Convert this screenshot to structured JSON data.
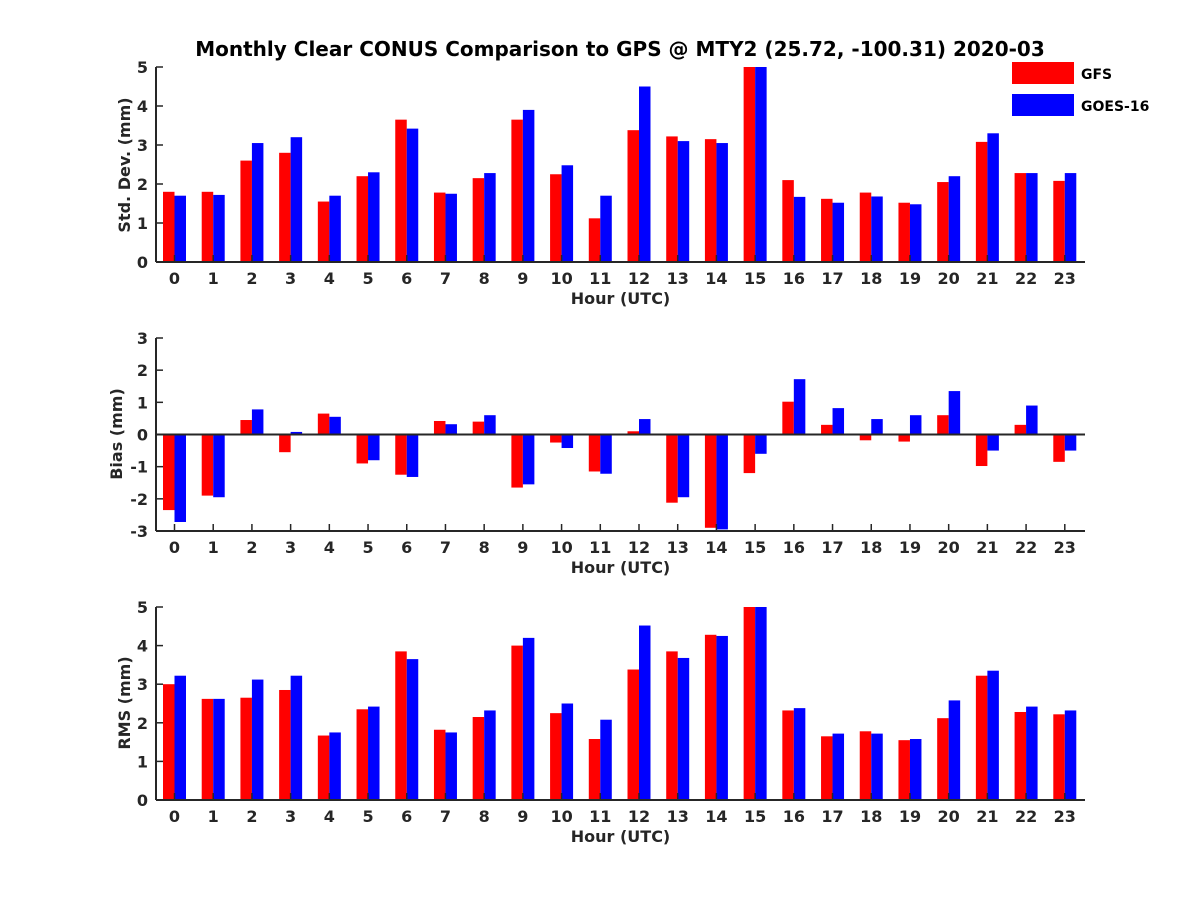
{
  "title": "Monthly Clear CONUS Comparison to GPS @ MTY2 (25.72, -100.31) 2020-03",
  "legend": {
    "placement": "top-right",
    "entries": [
      "GFS",
      "GOES-16"
    ]
  },
  "colors": {
    "GFS": "#ff0000",
    "GOES-16": "#0000ff",
    "axis": "#262626"
  },
  "chart_data": [
    {
      "type": "bar",
      "xlabel": "Hour (UTC)",
      "ylabel": "Std. Dev. (mm)",
      "ylim": [
        0,
        5
      ],
      "yticks": [
        0,
        1,
        2,
        3,
        4,
        5
      ],
      "categories": [
        "0",
        "1",
        "2",
        "3",
        "4",
        "5",
        "6",
        "7",
        "8",
        "9",
        "10",
        "11",
        "12",
        "13",
        "14",
        "15",
        "16",
        "17",
        "18",
        "19",
        "20",
        "21",
        "22",
        "23"
      ],
      "series": [
        {
          "name": "GFS",
          "values": [
            1.8,
            1.8,
            2.6,
            2.8,
            1.55,
            2.2,
            3.65,
            1.78,
            2.15,
            3.65,
            2.25,
            1.12,
            3.38,
            3.22,
            3.15,
            5.0,
            2.1,
            1.62,
            1.78,
            1.52,
            2.05,
            3.08,
            2.28,
            2.08
          ]
        },
        {
          "name": "GOES-16",
          "values": [
            1.7,
            1.72,
            3.05,
            3.2,
            1.7,
            2.3,
            3.42,
            1.75,
            2.28,
            3.9,
            2.48,
            1.7,
            4.5,
            3.1,
            3.05,
            5.0,
            1.67,
            1.52,
            1.68,
            1.48,
            2.2,
            3.3,
            2.28,
            2.28
          ]
        }
      ]
    },
    {
      "type": "bar",
      "xlabel": "Hour (UTC)",
      "ylabel": "Bias (mm)",
      "ylim": [
        -3,
        3
      ],
      "yticks": [
        -3,
        -2,
        -1,
        0,
        1,
        2,
        3
      ],
      "categories": [
        "0",
        "1",
        "2",
        "3",
        "4",
        "5",
        "6",
        "7",
        "8",
        "9",
        "10",
        "11",
        "12",
        "13",
        "14",
        "15",
        "16",
        "17",
        "18",
        "19",
        "20",
        "21",
        "22",
        "23"
      ],
      "series": [
        {
          "name": "GFS",
          "values": [
            -2.35,
            -1.9,
            0.45,
            -0.55,
            0.65,
            -0.9,
            -1.25,
            0.42,
            0.4,
            -1.65,
            -0.25,
            -1.15,
            0.1,
            -2.12,
            -2.9,
            -1.2,
            1.02,
            0.3,
            -0.18,
            -0.22,
            0.6,
            -0.98,
            0.3,
            -0.85
          ]
        },
        {
          "name": "GOES-16",
          "values": [
            -2.72,
            -1.95,
            0.78,
            0.08,
            0.55,
            -0.8,
            -1.32,
            0.32,
            0.6,
            -1.55,
            -0.42,
            -1.22,
            0.48,
            -1.95,
            -2.95,
            -0.6,
            1.72,
            0.82,
            0.48,
            0.6,
            1.35,
            -0.5,
            0.9,
            -0.5
          ]
        }
      ]
    },
    {
      "type": "bar",
      "xlabel": "Hour (UTC)",
      "ylabel": "RMS (mm)",
      "ylim": [
        0,
        5
      ],
      "yticks": [
        0,
        1,
        2,
        3,
        4,
        5
      ],
      "categories": [
        "0",
        "1",
        "2",
        "3",
        "4",
        "5",
        "6",
        "7",
        "8",
        "9",
        "10",
        "11",
        "12",
        "13",
        "14",
        "15",
        "16",
        "17",
        "18",
        "19",
        "20",
        "21",
        "22",
        "23"
      ],
      "series": [
        {
          "name": "GFS",
          "values": [
            3.0,
            2.62,
            2.65,
            2.85,
            1.67,
            2.35,
            3.85,
            1.82,
            2.15,
            4.0,
            2.25,
            1.58,
            3.38,
            3.85,
            4.28,
            5.0,
            2.32,
            1.65,
            1.78,
            1.55,
            2.12,
            3.22,
            2.28,
            2.22
          ]
        },
        {
          "name": "GOES-16",
          "values": [
            3.22,
            2.62,
            3.12,
            3.22,
            1.75,
            2.42,
            3.65,
            1.75,
            2.32,
            4.2,
            2.5,
            2.08,
            4.52,
            3.68,
            4.25,
            5.0,
            2.38,
            1.72,
            1.72,
            1.58,
            2.58,
            3.35,
            2.42,
            2.32
          ]
        }
      ]
    }
  ]
}
